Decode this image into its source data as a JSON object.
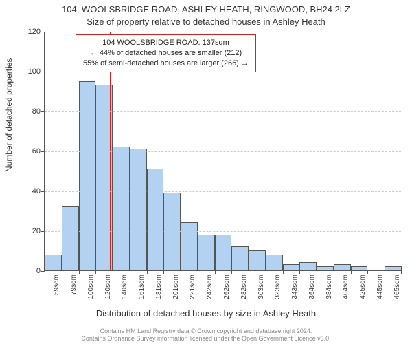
{
  "chart": {
    "type": "histogram",
    "title_main": "104, WOOLSBRIDGE ROAD, ASHLEY HEATH, RINGWOOD, BH24 2LZ",
    "title_sub": "Size of property relative to detached houses in Ashley Heath",
    "ylabel": "Number of detached properties",
    "xlabel": "Distribution of detached houses by size in Ashley Heath",
    "title_fontsize": 13,
    "label_fontsize": 12,
    "tick_fontsize": 10,
    "background_color": "#ffffff",
    "grid_color": "#cccccc",
    "axis_color": "#555555",
    "bar_border_color": "#555555",
    "bar_fill_color": "#b3d1f0",
    "bar_width_ratio": 1.0,
    "ylim": [
      0,
      120
    ],
    "yticks": [
      0,
      20,
      40,
      60,
      80,
      100,
      120
    ],
    "categories": [
      "59sqm",
      "79sqm",
      "100sqm",
      "120sqm",
      "140sqm",
      "161sqm",
      "181sqm",
      "201sqm",
      "221sqm",
      "242sqm",
      "262sqm",
      "282sqm",
      "303sqm",
      "323sqm",
      "343sqm",
      "364sqm",
      "384sqm",
      "404sqm",
      "425sqm",
      "445sqm",
      "465sqm"
    ],
    "values": [
      8,
      32,
      95,
      93,
      62,
      61,
      51,
      39,
      24,
      18,
      18,
      12,
      10,
      8,
      3,
      4,
      2,
      3,
      2,
      0,
      2
    ],
    "marker": {
      "color": "#cc2222",
      "position_index_between": [
        3,
        4
      ]
    },
    "annotation": {
      "border_color": "#cc2222",
      "background_color": "#ffffff",
      "text_color": "#222222",
      "fontsize": 11,
      "line1": "104 WOOLSBRIDGE ROAD: 137sqm",
      "line2": "← 44% of detached houses are smaller (212)",
      "line3": "55% of semi-detached houses are larger (266) →"
    }
  },
  "footer": {
    "color": "#888888",
    "fontsize": 9,
    "line1": "Contains HM Land Registry data © Crown copyright and database right 2024.",
    "line2": "Contains Ordnance Survey information licensed under the Open Government Licence v3.0."
  }
}
